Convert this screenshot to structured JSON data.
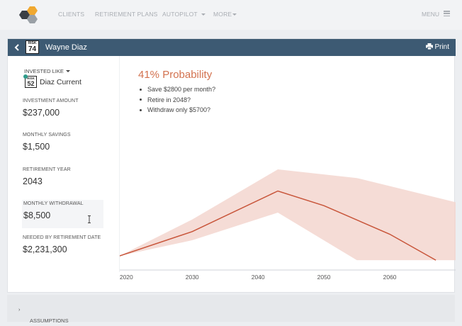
{
  "nav": {
    "items": [
      {
        "label": "CLIENTS",
        "caret": false
      },
      {
        "label": "RETIREMENT PLANS",
        "caret": false
      },
      {
        "label": "AUTOPILOT",
        "caret": true
      },
      {
        "label": "MORE",
        "caret": true
      }
    ],
    "menu_label": "MENU",
    "logo_colors": [
      "#f0a830",
      "#3a3f45",
      "#9aa0a6"
    ]
  },
  "header": {
    "risk_label": "RISK",
    "risk_score": "74",
    "client_name": "Wayne Diaz",
    "print_label": "Print",
    "color": "#3d5a73"
  },
  "sidebar": {
    "invested_like_label": "INVESTED LIKE",
    "portfolio_risk_label": "RISK",
    "portfolio_risk_score": "52",
    "portfolio_name": "Diaz Current",
    "fields": [
      {
        "label": "INVESTMENT AMOUNT",
        "value": "$237,000"
      },
      {
        "label": "MONTHLY SAVINGS",
        "value": "$1,500"
      },
      {
        "label": "RETIREMENT YEAR",
        "value": "2043"
      },
      {
        "label": "MONTHLY WITHDRAWAL",
        "value": "$8,500"
      },
      {
        "label": "NEEDED BY RETIREMENT DATE",
        "value": "$2,231,300"
      }
    ]
  },
  "main": {
    "probability_title": "41% Probability",
    "suggestions": [
      "Save $2800 per month?",
      "Retire in 2048?",
      "Withdraw only $5700?"
    ]
  },
  "chart_data": {
    "type": "area",
    "x_ticks": [
      "2020",
      "2030",
      "2040",
      "2050",
      "2060"
    ],
    "xlim": [
      2019,
      2070
    ],
    "median": [
      [
        2019,
        0.0
      ],
      [
        2030,
        0.28
      ],
      [
        2043,
        0.75
      ],
      [
        2050,
        0.58
      ],
      [
        2060,
        0.25
      ],
      [
        2067,
        -0.05
      ]
    ],
    "band_upper": [
      [
        2019,
        0.0
      ],
      [
        2030,
        0.42
      ],
      [
        2043,
        1.0
      ],
      [
        2055,
        0.9
      ],
      [
        2070,
        0.62
      ]
    ],
    "band_lower": [
      [
        2070,
        -0.05
      ],
      [
        2055,
        -0.05
      ],
      [
        2043,
        0.5
      ],
      [
        2030,
        0.18
      ],
      [
        2019,
        0.0
      ]
    ],
    "line_color": "#c8553a",
    "band_color": "#f3d6cf"
  },
  "footer": {
    "assumptions_label": "ASSUMPTIONS"
  }
}
